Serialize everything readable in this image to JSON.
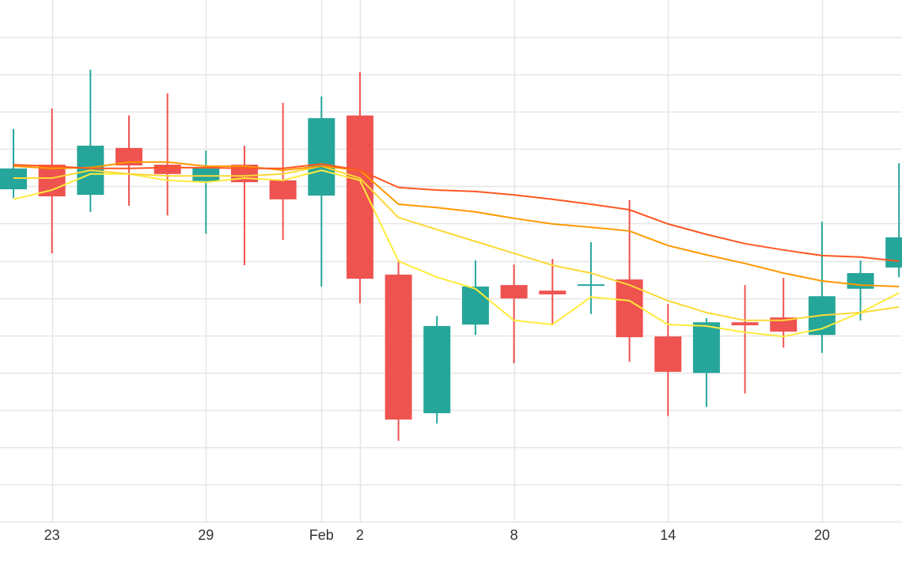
{
  "chart_data": {
    "type": "candlestick",
    "categories": [
      null,
      "23",
      null,
      null,
      null,
      "29",
      null,
      null,
      "Feb",
      "2",
      null,
      null,
      null,
      "8",
      null,
      null,
      null,
      "14",
      null,
      null,
      null,
      "20",
      null,
      null
    ],
    "open": [
      8.92,
      9.58,
      8.77,
      10.03,
      9.58,
      9.14,
      9.58,
      9.16,
      8.75,
      10.9,
      6.63,
      2.91,
      5.29,
      6.35,
      6.2,
      6.33,
      6.5,
      4.97,
      3.99,
      5.35,
      5.48,
      5.01,
      6.25,
      6.82
    ],
    "high": [
      10.54,
      11.09,
      12.13,
      10.9,
      11.49,
      9.96,
      10.09,
      11.24,
      11.41,
      12.07,
      7.03,
      5.52,
      7.01,
      6.9,
      7.05,
      7.5,
      8.63,
      5.84,
      5.46,
      6.35,
      6.54,
      8.05,
      7.01,
      9.62
    ],
    "low": [
      8.69,
      7.2,
      8.31,
      8.48,
      8.22,
      7.73,
      6.88,
      7.56,
      6.31,
      5.86,
      2.17,
      2.63,
      5.01,
      4.25,
      5.27,
      5.57,
      4.29,
      2.83,
      3.08,
      3.44,
      4.67,
      4.53,
      5.4,
      6.56
    ],
    "close": [
      9.48,
      8.73,
      10.09,
      9.56,
      9.33,
      9.5,
      9.11,
      8.65,
      10.83,
      6.52,
      2.74,
      5.25,
      6.31,
      5.99,
      6.1,
      6.37,
      4.95,
      4.02,
      5.35,
      5.27,
      5.1,
      6.05,
      6.67,
      7.63
    ],
    "up_color": "#26a69a",
    "down_color": "#ef5350",
    "overlays": [
      {
        "color": "#ffeb3b",
        "values": [
          8.65,
          8.9,
          9.33,
          9.33,
          9.16,
          9.11,
          9.22,
          9.16,
          9.43,
          9.16,
          6.99,
          6.56,
          6.25,
          5.4,
          5.29,
          6.03,
          5.93,
          5.29,
          5.25,
          5.08,
          4.97,
          5.18,
          5.61,
          6.14
        ]
      },
      {
        "color": "#fdd835",
        "values": [
          9.22,
          9.22,
          9.43,
          9.33,
          9.28,
          9.28,
          9.28,
          9.33,
          9.54,
          9.22,
          8.16,
          7.84,
          7.52,
          7.2,
          6.88,
          6.67,
          6.35,
          5.93,
          5.61,
          5.4,
          5.4,
          5.54,
          5.61,
          5.76
        ]
      },
      {
        "color": "#ff9800",
        "values": [
          9.54,
          9.48,
          9.5,
          9.65,
          9.65,
          9.54,
          9.54,
          9.43,
          9.54,
          9.43,
          8.52,
          8.43,
          8.31,
          8.14,
          7.99,
          7.9,
          7.8,
          7.41,
          7.16,
          6.93,
          6.67,
          6.46,
          6.35,
          6.31
        ]
      },
      {
        "color": "#ff5722",
        "values": [
          9.58,
          9.54,
          9.48,
          9.48,
          9.5,
          9.5,
          9.48,
          9.48,
          9.6,
          9.43,
          8.97,
          8.9,
          8.86,
          8.77,
          8.65,
          8.52,
          8.37,
          7.99,
          7.71,
          7.46,
          7.29,
          7.14,
          7.1,
          6.99
        ]
      }
    ],
    "ylim": [
      0,
      14
    ],
    "yticks": [
      1,
      2,
      3,
      4,
      5,
      6,
      7,
      8,
      9,
      10,
      11,
      12,
      13
    ],
    "grid": true
  }
}
